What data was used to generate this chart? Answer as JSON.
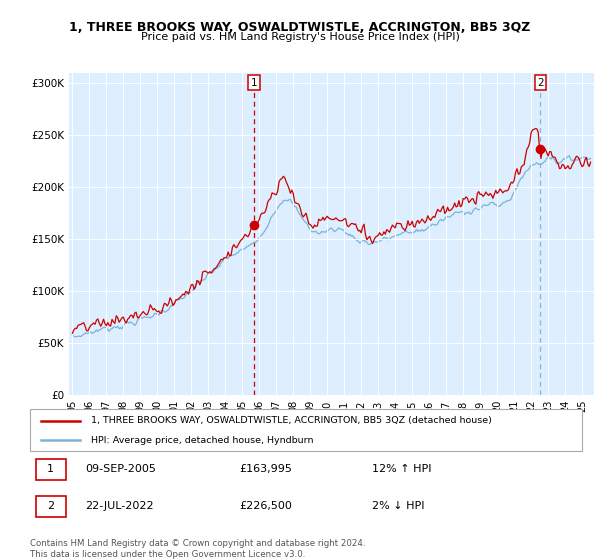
{
  "title": "1, THREE BROOKS WAY, OSWALDTWISTLE, ACCRINGTON, BB5 3QZ",
  "subtitle": "Price paid vs. HM Land Registry's House Price Index (HPI)",
  "legend_line1": "1, THREE BROOKS WAY, OSWALDTWISTLE, ACCRINGTON, BB5 3QZ (detached house)",
  "legend_line2": "HPI: Average price, detached house, Hyndburn",
  "annotation1": {
    "label": "1",
    "date": "09-SEP-2005",
    "price": "£163,995",
    "hpi": "12% ↑ HPI",
    "x_year": 2005.69,
    "y_val": 163995
  },
  "annotation2": {
    "label": "2",
    "date": "22-JUL-2022",
    "price": "£226,500",
    "hpi": "2% ↓ HPI",
    "x_year": 2022.55,
    "y_val": 226500
  },
  "footer": "Contains HM Land Registry data © Crown copyright and database right 2024.\nThis data is licensed under the Open Government Licence v3.0.",
  "hpi_color": "#7ab4d8",
  "price_color": "#cc0000",
  "background_color": "#ddeeff",
  "ylim": [
    0,
    310000
  ],
  "yticks": [
    0,
    50000,
    100000,
    150000,
    200000,
    250000,
    300000
  ],
  "ytick_labels": [
    "£0",
    "£50K",
    "£100K",
    "£150K",
    "£200K",
    "£250K",
    "£300K"
  ],
  "x_start": 1995,
  "x_end": 2025.5,
  "xtick_years": [
    1995,
    1996,
    1997,
    1998,
    1999,
    2000,
    2001,
    2002,
    2003,
    2004,
    2005,
    2006,
    2007,
    2008,
    2009,
    2010,
    2011,
    2012,
    2013,
    2014,
    2015,
    2016,
    2017,
    2018,
    2019,
    2020,
    2021,
    2022,
    2023,
    2024,
    2025
  ]
}
